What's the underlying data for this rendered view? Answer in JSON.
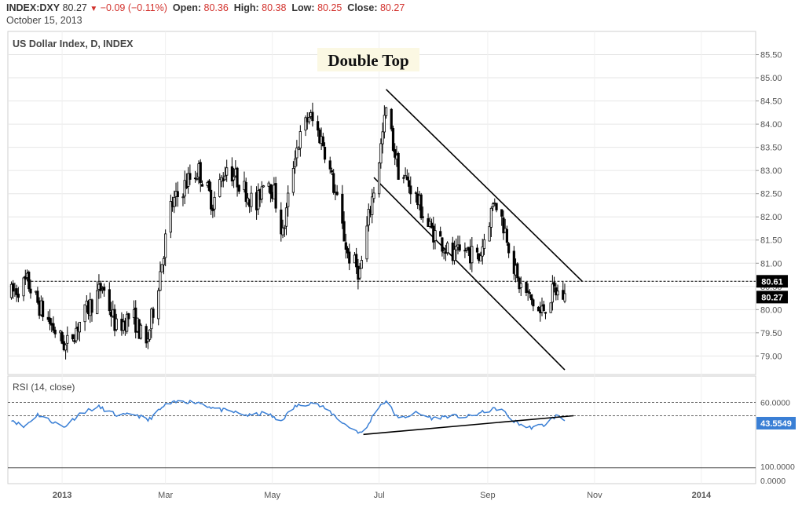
{
  "header": {
    "symbol": "INDEX:DXY",
    "last": "80.27",
    "change": "−0.09 (−0.11%)",
    "open_label": "Open:",
    "open": "80.36",
    "high_label": "High:",
    "high": "80.38",
    "low_label": "Low:",
    "low": "80.25",
    "close_label": "Close:",
    "close": "80.27",
    "date": "October 15, 2013"
  },
  "colors": {
    "candle": "#000000",
    "rsi_line": "#3a7fd5",
    "negative": "#d2322d",
    "badge_bg": "#000000",
    "badge_text": "#ffffff",
    "grid": "#e6e6e6",
    "annotation_bg": "#fbf8e3"
  },
  "chart_data": {
    "type": "candlestick",
    "title": "US Dollar Index, D, INDEX",
    "annotation": "Double Top",
    "y_axis": {
      "ticks": [
        "85.50",
        "85.00",
        "84.50",
        "84.00",
        "83.50",
        "83.00",
        "82.50",
        "82.00",
        "81.50",
        "81.00",
        "80.50",
        "80.00",
        "79.50",
        "79.00"
      ],
      "range": [
        78.6,
        86.0
      ],
      "side": "right"
    },
    "x_axis": {
      "ticks": [
        "2013",
        "Mar",
        "May",
        "Jul",
        "Sep",
        "Nov",
        "2014"
      ],
      "range": [
        "2012-12-01",
        "2014-02-01"
      ]
    },
    "price_badges": [
      {
        "label": "80.61",
        "value": 80.61
      },
      {
        "label": "80.27",
        "value": 80.27
      }
    ],
    "resistance_level": 80.61,
    "channel_upper": [
      {
        "date": "2013-07-05",
        "value": 84.75
      },
      {
        "date": "2013-10-25",
        "value": 80.61
      }
    ],
    "channel_lower": [
      {
        "date": "2013-06-28",
        "value": 82.85
      },
      {
        "date": "2013-10-15",
        "value": 78.7
      }
    ],
    "trend_waypoints": [
      [
        "2012-12-01",
        80.3
      ],
      [
        "2012-12-12",
        80.6
      ],
      [
        "2012-12-20",
        80.0
      ],
      [
        "2013-01-03",
        79.2
      ],
      [
        "2013-01-12",
        79.8
      ],
      [
        "2013-01-24",
        80.5
      ],
      [
        "2013-02-01",
        79.6
      ],
      [
        "2013-02-10",
        79.9
      ],
      [
        "2013-02-18",
        79.2
      ],
      [
        "2013-02-25",
        80.6
      ],
      [
        "2013-03-04",
        82.2
      ],
      [
        "2013-03-14",
        82.8
      ],
      [
        "2013-03-20",
        83.0
      ],
      [
        "2013-03-28",
        82.3
      ],
      [
        "2013-04-05",
        83.1
      ],
      [
        "2013-04-15",
        82.6
      ],
      [
        "2013-04-22",
        82.2
      ],
      [
        "2013-04-27",
        83.0
      ],
      [
        "2013-05-02",
        82.5
      ],
      [
        "2013-05-07",
        81.6
      ],
      [
        "2013-05-14",
        83.4
      ],
      [
        "2013-05-22",
        84.2
      ],
      [
        "2013-05-30",
        83.6
      ],
      [
        "2013-06-06",
        82.5
      ],
      [
        "2013-06-13",
        81.2
      ],
      [
        "2013-06-20",
        80.8
      ],
      [
        "2013-06-26",
        82.2
      ],
      [
        "2013-06-30",
        83.0
      ],
      [
        "2013-07-05",
        84.3
      ],
      [
        "2013-07-12",
        83.0
      ],
      [
        "2013-07-20",
        82.6
      ],
      [
        "2013-07-29",
        81.8
      ],
      [
        "2013-08-05",
        81.5
      ],
      [
        "2013-08-12",
        81.1
      ],
      [
        "2013-08-19",
        81.3
      ],
      [
        "2013-08-27",
        81.1
      ],
      [
        "2013-09-05",
        82.4
      ],
      [
        "2013-09-12",
        81.6
      ],
      [
        "2013-09-18",
        80.6
      ],
      [
        "2013-09-24",
        80.3
      ],
      [
        "2013-10-01",
        79.9
      ],
      [
        "2013-10-04",
        80.1
      ],
      [
        "2013-10-09",
        80.4
      ],
      [
        "2013-10-15",
        80.27
      ]
    ],
    "rsi": {
      "label": "RSI (14, close)",
      "ticks": [
        "60.0000",
        "100.0000",
        "0.0000"
      ],
      "last_label": "43.5549",
      "last_value": 43.5549,
      "guides": [
        70,
        50
      ],
      "waypoints": [
        [
          "2012-12-01",
          48
        ],
        [
          "2012-12-10",
          33
        ],
        [
          "2012-12-18",
          52
        ],
        [
          "2013-01-02",
          33
        ],
        [
          "2013-01-12",
          55
        ],
        [
          "2013-01-22",
          63
        ],
        [
          "2013-02-02",
          50
        ],
        [
          "2013-02-12",
          52
        ],
        [
          "2013-02-19",
          43
        ],
        [
          "2013-03-01",
          66
        ],
        [
          "2013-03-10",
          72
        ],
        [
          "2013-03-20",
          70
        ],
        [
          "2013-03-30",
          60
        ],
        [
          "2013-04-08",
          56
        ],
        [
          "2013-04-18",
          50
        ],
        [
          "2013-04-28",
          55
        ],
        [
          "2013-05-05",
          40
        ],
        [
          "2013-05-14",
          64
        ],
        [
          "2013-05-24",
          70
        ],
        [
          "2013-06-02",
          58
        ],
        [
          "2013-06-12",
          36
        ],
        [
          "2013-06-22",
          22
        ],
        [
          "2013-06-30",
          63
        ],
        [
          "2013-07-05",
          72
        ],
        [
          "2013-07-12",
          45
        ],
        [
          "2013-07-22",
          54
        ],
        [
          "2013-08-01",
          46
        ],
        [
          "2013-08-10",
          50
        ],
        [
          "2013-08-20",
          48
        ],
        [
          "2013-09-02",
          58
        ],
        [
          "2013-09-08",
          62
        ],
        [
          "2013-09-15",
          43
        ],
        [
          "2013-09-24",
          32
        ],
        [
          "2013-10-03",
          36
        ],
        [
          "2013-10-10",
          50
        ],
        [
          "2013-10-15",
          43.55
        ]
      ]
    },
    "rsi_trendline": [
      {
        "date": "2013-06-22",
        "value": 22
      },
      {
        "date": "2013-10-20",
        "value": 50
      }
    ],
    "grid": true
  }
}
